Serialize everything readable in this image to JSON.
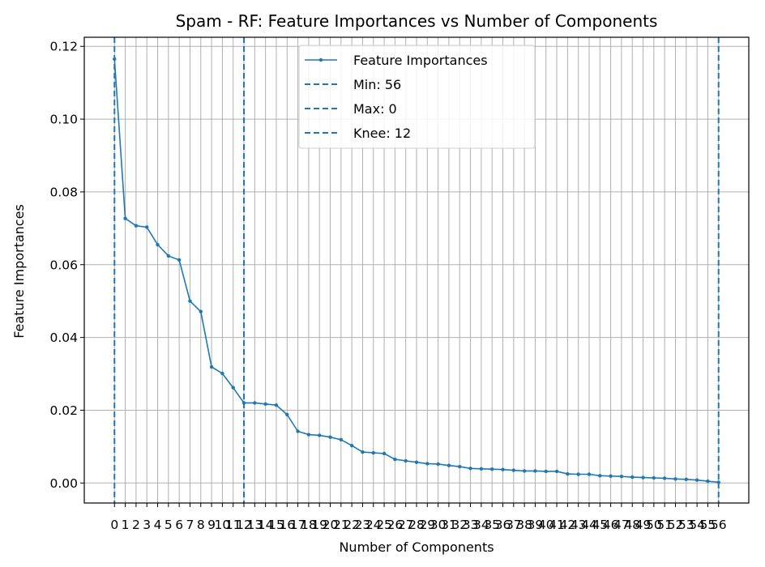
{
  "chart_data": {
    "type": "line",
    "title": "Spam - RF: Feature Importances vs Number of Components",
    "xlabel": "Number of Components",
    "ylabel": "Feature Importances",
    "xlim": [
      -2.8,
      58.8
    ],
    "ylim": [
      -0.0055,
      0.1225
    ],
    "yticks": [
      0.0,
      0.02,
      0.04,
      0.06,
      0.08,
      0.1,
      0.12
    ],
    "ytick_labels": [
      "0.00",
      "0.02",
      "0.04",
      "0.06",
      "0.08",
      "0.10",
      "0.12"
    ],
    "xticks": [
      0,
      1,
      2,
      3,
      4,
      5,
      6,
      7,
      8,
      9,
      10,
      11,
      12,
      13,
      14,
      15,
      16,
      17,
      18,
      19,
      20,
      21,
      22,
      23,
      24,
      25,
      26,
      27,
      28,
      29,
      30,
      31,
      32,
      33,
      34,
      35,
      36,
      37,
      38,
      39,
      40,
      41,
      42,
      43,
      44,
      45,
      46,
      47,
      48,
      49,
      50,
      51,
      52,
      53,
      54,
      55,
      56
    ],
    "xtick_labels": [
      "0",
      "1",
      "2",
      "3",
      "4",
      "5",
      "6",
      "7",
      "8",
      "9",
      "10",
      "11",
      "12",
      "13",
      "14",
      "15",
      "16",
      "17",
      "18",
      "19",
      "20",
      "21",
      "22",
      "23",
      "24",
      "25",
      "26",
      "27",
      "28",
      "29",
      "30",
      "31",
      "32",
      "33",
      "34",
      "35",
      "36",
      "37",
      "38",
      "39",
      "40",
      "41",
      "42",
      "43",
      "44",
      "45",
      "46",
      "47",
      "48",
      "49",
      "50",
      "51",
      "52",
      "53",
      "54",
      "55",
      "56"
    ],
    "grid": true,
    "legend_position": "top-center",
    "series": [
      {
        "name": "Feature Importances",
        "color": "#1f77b4",
        "x": [
          0,
          1,
          2,
          3,
          4,
          5,
          6,
          7,
          8,
          9,
          10,
          11,
          12,
          13,
          14,
          15,
          16,
          17,
          18,
          19,
          20,
          21,
          22,
          23,
          24,
          25,
          26,
          27,
          28,
          29,
          30,
          31,
          32,
          33,
          34,
          35,
          36,
          37,
          38,
          39,
          40,
          41,
          42,
          43,
          44,
          45,
          46,
          47,
          48,
          49,
          50,
          51,
          52,
          53,
          54,
          55,
          56
        ],
        "y": [
          0.1165,
          0.0727,
          0.0707,
          0.0703,
          0.0655,
          0.0624,
          0.0613,
          0.05,
          0.0471,
          0.0319,
          0.0301,
          0.0262,
          0.022,
          0.022,
          0.0217,
          0.0214,
          0.0188,
          0.0142,
          0.0133,
          0.0131,
          0.0126,
          0.0119,
          0.0103,
          0.0085,
          0.0083,
          0.0081,
          0.0065,
          0.0061,
          0.0057,
          0.0053,
          0.0052,
          0.0048,
          0.0045,
          0.004,
          0.0039,
          0.0038,
          0.0037,
          0.0035,
          0.0033,
          0.0033,
          0.0032,
          0.0032,
          0.0025,
          0.0024,
          0.0024,
          0.002,
          0.0019,
          0.0018,
          0.0016,
          0.0015,
          0.0014,
          0.0013,
          0.0011,
          0.001,
          0.0008,
          0.0005,
          0.0002
        ]
      }
    ],
    "vlines": [
      {
        "name": "Min: 56",
        "x": 56,
        "color": "#1f77b4"
      },
      {
        "name": "Max: 0",
        "x": 0,
        "color": "#1f77b4"
      },
      {
        "name": "Knee: 12",
        "x": 12,
        "color": "#1f77b4"
      }
    ]
  }
}
